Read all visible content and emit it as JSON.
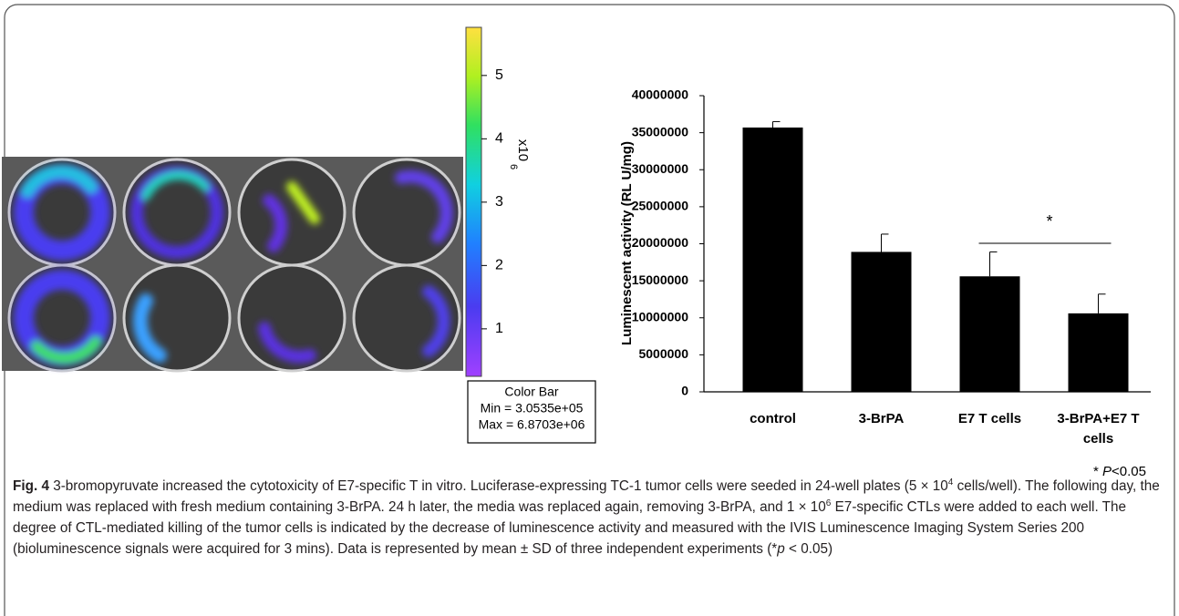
{
  "chart_data": {
    "type": "bar",
    "y_label": "Luminescent activity (RL U/mg)",
    "categories": [
      "control",
      "3-BrPA",
      "E7 T cells",
      "3-BrPA+E7 T cells"
    ],
    "values": [
      35700000,
      18900000,
      15600000,
      10600000
    ],
    "errors": [
      800000,
      2400000,
      3300000,
      2600000
    ],
    "color": "#000000",
    "ylim": [
      0,
      40000000
    ],
    "yticks": [
      0,
      5000000,
      10000000,
      15000000,
      20000000,
      25000000,
      30000000,
      35000000,
      40000000
    ],
    "grid": false,
    "significance": "*",
    "footnote": [
      "* ",
      "P",
      "<0.05"
    ]
  },
  "colorbar": {
    "ylim": [
      0.25,
      5.76
    ],
    "ticks": [
      1,
      2,
      3,
      4,
      5
    ],
    "unit": "x10",
    "exponent": "6",
    "box": {
      "title": "Color Bar",
      "min": "Min = 3.0535e+05",
      "max": "Max = 6.8703e+06"
    }
  },
  "caption": {
    "label": "Fig. 4",
    "parts": [
      " 3-bromopyruvate increased the cytotoxicity of E7-specific T in vitro. Luciferase-expressing TC-1 tumor cells were seeded in 24-well plates (5 × 10",
      "4",
      " cells/well). The following day, the medium was replaced with fresh medium containing 3-BrPA. 24 h later, the media was replaced again, removing 3-BrPA, and 1 × 10",
      "6",
      " E7-specific CTLs were added to each well. The degree of CTL-mediated killing of the tumor cells is indicated by the decrease of luminescence activity and measured with the IVIS Luminescence Imaging System Series 200 (bioluminescence signals were acquired for 3 mins). Data is represented by mean ± SD of three independent experiments (*",
      "p",
      " < 0.05)"
    ]
  }
}
